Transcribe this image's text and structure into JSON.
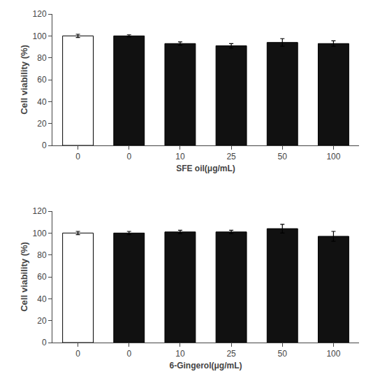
{
  "chart_data": [
    {
      "type": "bar",
      "categories": [
        "0",
        "0",
        "10",
        "25",
        "50",
        "100"
      ],
      "values": [
        100,
        100,
        93,
        91,
        94,
        93
      ],
      "errors": [
        1.5,
        1.0,
        1.5,
        2.0,
        3.5,
        2.5
      ],
      "colors": [
        "#ffffff",
        "#111111",
        "#111111",
        "#111111",
        "#111111",
        "#111111"
      ],
      "xlabel": "SFE oil(μg/mL)",
      "ylabel": "Cell viability (%)",
      "ylim": [
        0,
        120
      ],
      "yticks": [
        0,
        20,
        40,
        60,
        80,
        100,
        120
      ],
      "grid": false
    },
    {
      "type": "bar",
      "categories": [
        "0",
        "0",
        "10",
        "25",
        "50",
        "100"
      ],
      "values": [
        100,
        100,
        101,
        101,
        104,
        97
      ],
      "errors": [
        1.5,
        1.5,
        1.5,
        1.5,
        4.0,
        4.5
      ],
      "colors": [
        "#ffffff",
        "#111111",
        "#111111",
        "#111111",
        "#111111",
        "#111111"
      ],
      "xlabel": "6-Gingerol(μg/mL)",
      "ylabel": "Cell viability (%)",
      "ylim": [
        0,
        120
      ],
      "yticks": [
        0,
        20,
        40,
        60,
        80,
        100,
        120
      ],
      "grid": false
    }
  ]
}
